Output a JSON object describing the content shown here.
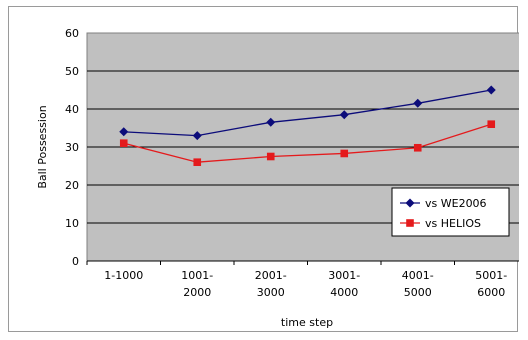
{
  "chart_data": {
    "type": "line",
    "xlabel": "time step",
    "ylabel": "Ball Possession",
    "ylim": [
      0,
      60
    ],
    "yticks": [
      0,
      10,
      20,
      30,
      40,
      50,
      60
    ],
    "categories": [
      [
        "1-1000"
      ],
      [
        "1001-",
        "2000"
      ],
      [
        "2001-",
        "3000"
      ],
      [
        "3001-",
        "4000"
      ],
      [
        "4001-",
        "5000"
      ],
      [
        "5001-",
        "6000"
      ]
    ],
    "series": [
      {
        "name": "vs WE2006",
        "color": "#0c0c7a",
        "marker": "diamond",
        "values": [
          34,
          33,
          36.5,
          38.5,
          41.5,
          45
        ]
      },
      {
        "name": "vs HELIOS",
        "color": "#e41a1c",
        "marker": "square",
        "values": [
          31,
          26,
          27.5,
          28.3,
          29.8,
          36
        ]
      }
    ],
    "plot_background": "#c0c0c0",
    "grid": true,
    "legend_position": "bottom-right inside plot"
  }
}
